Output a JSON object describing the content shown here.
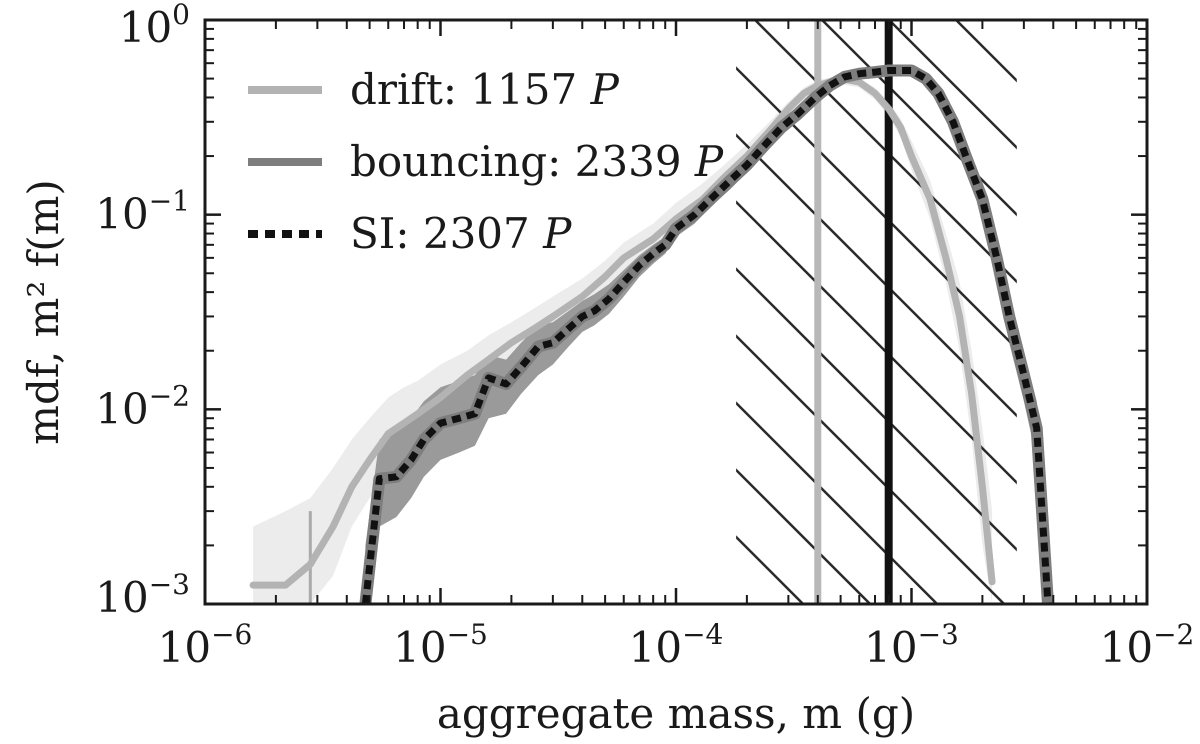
{
  "chart_data": {
    "type": "line",
    "title": "",
    "xlabel": "aggregate mass, m (g)",
    "ylabel": "mdf, m² f(m)",
    "xscale": "log",
    "yscale": "log",
    "xlim": [
      1e-06,
      0.01
    ],
    "ylim": [
      0.001,
      1
    ],
    "x_ticks": [
      {
        "base": "10",
        "exp": "−6",
        "value": 1e-06
      },
      {
        "base": "10",
        "exp": "−5",
        "value": 1e-05
      },
      {
        "base": "10",
        "exp": "−4",
        "value": 0.0001
      },
      {
        "base": "10",
        "exp": "−3",
        "value": 0.001
      },
      {
        "base": "10",
        "exp": "−2",
        "value": 0.01
      }
    ],
    "y_ticks": [
      {
        "base": "10",
        "exp": "−3",
        "value": 0.001
      },
      {
        "base": "10",
        "exp": "−2",
        "value": 0.01
      },
      {
        "base": "10",
        "exp": "−1",
        "value": 0.1
      },
      {
        "base": "10",
        "exp": "0",
        "value": 1
      }
    ],
    "legend": {
      "placement": "top-left"
    },
    "hatched_region": {
      "x_range": [
        0.00018,
        0.0028
      ]
    },
    "vertical_lines": [
      {
        "x": 0.0004,
        "color": "#b8b8b8"
      },
      {
        "x": 0.0008,
        "color": "#111111"
      },
      {
        "x": 2.8e-06,
        "y_max": 0.003,
        "color": "#aaaaaa"
      }
    ],
    "series": [
      {
        "name": "drift: 1157 P",
        "legend_main": "drift: 1157 ",
        "legend_italic": "P",
        "color": "#b3b3b3",
        "band_color": "#ececec",
        "style": "solid",
        "x": [
          1.6e-06,
          2.2e-06,
          2.8e-06,
          3.5e-06,
          4.2e-06,
          5e-06,
          6e-06,
          7e-06,
          8e-06,
          1e-05,
          1.3e-05,
          1.6e-05,
          2e-05,
          2.5e-05,
          3e-05,
          4e-05,
          5e-05,
          6e-05,
          8e-05,
          0.0001,
          0.00013,
          0.00016,
          0.0002,
          0.00025,
          0.0003,
          0.00035,
          0.0004,
          0.0005,
          0.0006,
          0.0007,
          0.0008,
          0.0009,
          0.001,
          0.0012,
          0.0014,
          0.0016,
          0.0018,
          0.002,
          0.0022
        ],
        "y": [
          0.00125,
          0.00125,
          0.0016,
          0.0025,
          0.004,
          0.0055,
          0.0075,
          0.0085,
          0.0095,
          0.0115,
          0.015,
          0.018,
          0.022,
          0.026,
          0.03,
          0.038,
          0.048,
          0.06,
          0.075,
          0.095,
          0.12,
          0.155,
          0.2,
          0.27,
          0.35,
          0.42,
          0.46,
          0.5,
          0.48,
          0.42,
          0.35,
          0.28,
          0.2,
          0.12,
          0.06,
          0.03,
          0.012,
          0.004,
          0.0013
        ],
        "band_upper": [
          0.0025,
          0.003,
          0.0035,
          0.005,
          0.007,
          0.009,
          0.0115,
          0.013,
          0.014,
          0.017,
          0.02,
          0.024,
          0.028,
          0.033,
          0.038,
          0.047,
          0.058,
          0.072,
          0.09,
          0.115,
          0.145,
          0.18,
          0.23,
          0.3,
          0.38,
          0.45,
          0.49,
          0.52,
          0.5,
          0.45,
          0.38,
          0.31,
          0.24,
          0.15,
          0.08,
          0.045,
          0.02,
          0.008,
          0.003
        ],
        "band_lower": [
          0.001,
          0.001,
          0.001,
          0.0014,
          0.0025,
          0.0035,
          0.0048,
          0.0058,
          0.0068,
          0.0082,
          0.011,
          0.0135,
          0.0165,
          0.02,
          0.024,
          0.03,
          0.039,
          0.05,
          0.063,
          0.08,
          0.1,
          0.13,
          0.17,
          0.24,
          0.32,
          0.39,
          0.43,
          0.47,
          0.45,
          0.39,
          0.32,
          0.25,
          0.17,
          0.095,
          0.045,
          0.02,
          0.007,
          0.002,
          0.001
        ]
      },
      {
        "name": "bouncing: 2339 P",
        "legend_main": "bouncing: 2339 ",
        "legend_italic": "P",
        "color": "#7e7e7e",
        "band_color": "#9a9a9a",
        "style": "solid",
        "x": [
          4.8e-06,
          5.5e-06,
          6.5e-06,
          7.5e-06,
          8.5e-06,
          1e-05,
          1.2e-05,
          1.4e-05,
          1.6e-05,
          1.9e-05,
          2.2e-05,
          2.6e-05,
          3e-05,
          3.5e-05,
          4e-05,
          4.5e-05,
          5.2e-05,
          6e-05,
          7e-05,
          8e-05,
          9e-05,
          0.0001,
          0.00012,
          0.00014,
          0.00017,
          0.0002,
          0.00024,
          0.00028,
          0.00033,
          0.00039,
          0.00045,
          0.00052,
          0.0006,
          0.0007,
          0.0008,
          0.0009,
          0.001,
          0.00115,
          0.0013,
          0.0015,
          0.0017,
          0.002,
          0.0023,
          0.0026,
          0.003,
          0.0034,
          0.0038
        ],
        "y": [
          0.001,
          0.0044,
          0.0045,
          0.0055,
          0.007,
          0.0085,
          0.009,
          0.0095,
          0.0145,
          0.0135,
          0.0165,
          0.021,
          0.022,
          0.026,
          0.03,
          0.032,
          0.037,
          0.045,
          0.055,
          0.063,
          0.07,
          0.085,
          0.1,
          0.12,
          0.15,
          0.18,
          0.23,
          0.28,
          0.33,
          0.4,
          0.46,
          0.51,
          0.53,
          0.54,
          0.55,
          0.55,
          0.55,
          0.5,
          0.42,
          0.3,
          0.2,
          0.12,
          0.06,
          0.03,
          0.015,
          0.008,
          0.001
        ],
        "band_upper": [
          0.002,
          0.007,
          0.008,
          0.009,
          0.011,
          0.013,
          0.014,
          0.015,
          0.019,
          0.018,
          0.022,
          0.027,
          0.028,
          0.032,
          0.036,
          0.039,
          0.044,
          0.052,
          0.062,
          0.07,
          0.077,
          0.093,
          0.11,
          0.13,
          0.165,
          0.2,
          0.25,
          0.3,
          0.35,
          0.42,
          0.48,
          0.53,
          0.555,
          0.565,
          0.575,
          0.575,
          0.57,
          0.53,
          0.45,
          0.34,
          0.23,
          0.14,
          0.075,
          0.04,
          0.02,
          0.011,
          0.002
        ],
        "band_lower": [
          0.001,
          0.0025,
          0.0028,
          0.0035,
          0.0045,
          0.0055,
          0.006,
          0.0065,
          0.009,
          0.0095,
          0.012,
          0.015,
          0.017,
          0.021,
          0.025,
          0.027,
          0.031,
          0.038,
          0.048,
          0.056,
          0.063,
          0.077,
          0.09,
          0.11,
          0.135,
          0.165,
          0.21,
          0.26,
          0.31,
          0.38,
          0.44,
          0.49,
          0.505,
          0.515,
          0.525,
          0.525,
          0.53,
          0.47,
          0.39,
          0.26,
          0.17,
          0.1,
          0.048,
          0.022,
          0.011,
          0.0055,
          0.001
        ]
      },
      {
        "name": "SI: 2307 P",
        "legend_main": "SI: 2307 ",
        "legend_italic": "P",
        "color": "#111111",
        "style": "dotted",
        "x": [
          4.8e-06,
          5.5e-06,
          6.5e-06,
          7.5e-06,
          8.5e-06,
          1e-05,
          1.2e-05,
          1.4e-05,
          1.6e-05,
          1.9e-05,
          2.2e-05,
          2.6e-05,
          3e-05,
          3.5e-05,
          4e-05,
          4.5e-05,
          5.2e-05,
          6e-05,
          7e-05,
          8e-05,
          9e-05,
          0.0001,
          0.00012,
          0.00014,
          0.00017,
          0.0002,
          0.00024,
          0.00028,
          0.00033,
          0.00039,
          0.00045,
          0.00052,
          0.0006,
          0.0007,
          0.0008,
          0.0009,
          0.001,
          0.00115,
          0.0013,
          0.0015,
          0.0017,
          0.002,
          0.0023,
          0.0026,
          0.003,
          0.0034,
          0.0038
        ],
        "y": [
          0.001,
          0.0044,
          0.0045,
          0.0055,
          0.007,
          0.0085,
          0.009,
          0.0095,
          0.0145,
          0.0135,
          0.0165,
          0.021,
          0.022,
          0.026,
          0.03,
          0.032,
          0.037,
          0.045,
          0.055,
          0.063,
          0.07,
          0.085,
          0.1,
          0.12,
          0.15,
          0.18,
          0.23,
          0.28,
          0.33,
          0.4,
          0.46,
          0.51,
          0.53,
          0.54,
          0.55,
          0.55,
          0.55,
          0.5,
          0.42,
          0.3,
          0.2,
          0.12,
          0.06,
          0.03,
          0.015,
          0.008,
          0.001
        ]
      }
    ]
  }
}
